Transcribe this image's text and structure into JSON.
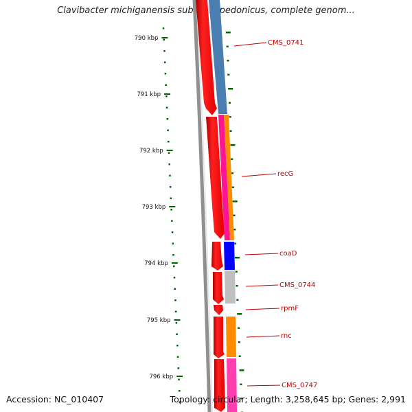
{
  "title": "Clavibacter michiganensis subsp. sepedonicus, complete genom...",
  "accession": "Accession: NC_010407",
  "topology": "Topology: circular; Length: 3,258,645 bp; Genes: 2,991",
  "ticks": [
    "790 kbp",
    "791 kbp",
    "792 kbp",
    "793 kbp",
    "794 kbp",
    "795 kbp",
    "796 kbp"
  ],
  "genes": [
    "CMS_0741",
    "recG",
    "coaD",
    "CMS_0744",
    "rpmF",
    "rnc",
    "CMS_0747"
  ],
  "colors": {
    "backbone": "#808080",
    "forward_cds": "#ff0000",
    "label": "#c00000",
    "tick": "#006400",
    "cog_blue": "#4682b4",
    "cog_magenta": "#ff1493",
    "cog_orange": "#ff8c00",
    "cog_darkblue": "#0000ff",
    "cog_grey": "#c0c0c0",
    "cog_pink": "#ff1493"
  }
}
